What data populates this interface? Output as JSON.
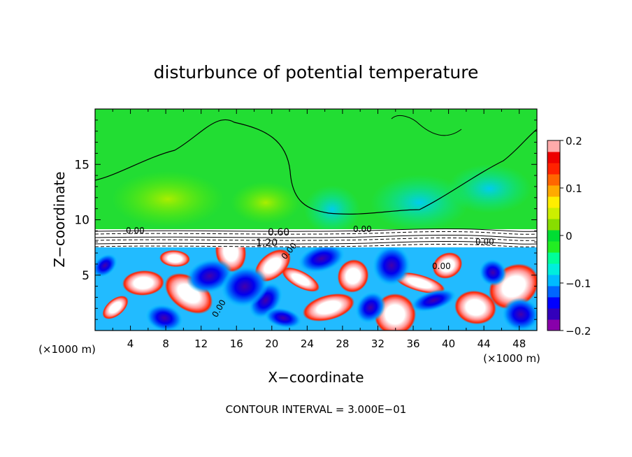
{
  "chart_data": {
    "type": "heatmap",
    "title": "disturbunce of potential temperature",
    "xlabel": "X−coordinate",
    "ylabel": "Z−coordinate",
    "x_unit_label_left": "(×1000 m)",
    "x_unit_label_right": "(×1000 m)",
    "xlim": [
      0,
      50
    ],
    "ylim": [
      0,
      20
    ],
    "x_ticks": [
      4,
      8,
      12,
      16,
      20,
      24,
      28,
      32,
      36,
      40,
      44,
      48
    ],
    "x_tick_labels": [
      "4",
      "8",
      "12",
      "16",
      "20",
      "24",
      "28",
      "32",
      "36",
      "40",
      "44",
      "48"
    ],
    "y_ticks": [
      5,
      10,
      15
    ],
    "y_tick_labels": [
      "5",
      "10",
      "15"
    ],
    "colorbar": {
      "range": [
        -0.2,
        0.2
      ],
      "tick_values": [
        0.2,
        0.1,
        0,
        -0.1,
        -0.2
      ],
      "tick_labels": [
        "0.2",
        "0.1",
        "0",
        "−0.1",
        "−0.2"
      ],
      "colors": [
        "#8800aa",
        "#3300bb",
        "#0000ff",
        "#0066ff",
        "#00bbff",
        "#00eedd",
        "#00ff99",
        "#22ee22",
        "#00dd33",
        "#88dd00",
        "#ccee00",
        "#ffee00",
        "#ffaa00",
        "#ff6600",
        "#ff2200",
        "#ee0000",
        "#ffaaaa"
      ]
    },
    "contour_labels": [
      "0.60",
      "1.20",
      "0.00",
      "0.00",
      "0.00",
      "0.00",
      "0.00",
      "0.00"
    ],
    "contour_interval_text": "CONTOUR INTERVAL = 3.000E−01"
  }
}
